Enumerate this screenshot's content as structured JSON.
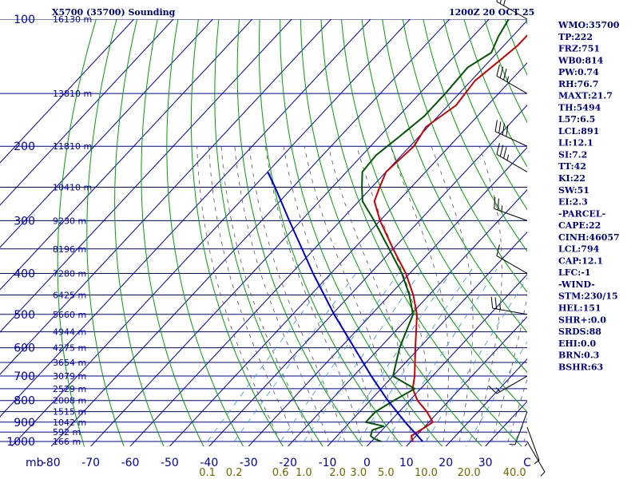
{
  "title_left": "X5700 (35700) Sounding",
  "title_right": "1200Z 20 OCT 25",
  "colors": {
    "isobar": "#0000aa",
    "isotherm": "#0000aa",
    "dry_adiabat": "#00a000",
    "moist_adiabat": "#555555",
    "mixing_ratio": "#3399cc",
    "temperature": "#cc0000",
    "dewpoint": "#005500",
    "parcel": "#0000cc",
    "text": "#000080"
  },
  "chart_data": {
    "type": "line",
    "diagram": "skew-t log-p",
    "x_unit_label": "C",
    "y_unit_label": "mb",
    "pressure_levels": [
      100,
      200,
      300,
      400,
      500,
      600,
      700,
      800,
      900,
      1000
    ],
    "temperature_ticks": [
      -80,
      -70,
      -60,
      -50,
      -40,
      -30,
      -20,
      -10,
      0,
      10,
      20,
      30
    ],
    "mixing_ratio_ticks": [
      "0.1",
      "0.2",
      "0.6",
      "1.0",
      "2.0",
      "3.0",
      "5.0",
      "10.0",
      "20.0",
      "40.0"
    ],
    "height_labels": [
      {
        "p": 100,
        "label": "16130 m"
      },
      {
        "p": 150,
        "label": "13810 m"
      },
      {
        "p": 200,
        "label": "11810 m"
      },
      {
        "p": 250,
        "label": "10410 m"
      },
      {
        "p": 300,
        "label": "9230 m"
      },
      {
        "p": 350,
        "label": "8196 m"
      },
      {
        "p": 400,
        "label": "7280 m"
      },
      {
        "p": 450,
        "label": "6425 m"
      },
      {
        "p": 500,
        "label": "5660 m"
      },
      {
        "p": 550,
        "label": "4944 m"
      },
      {
        "p": 600,
        "label": "4275 m"
      },
      {
        "p": 650,
        "label": "3654 m"
      },
      {
        "p": 700,
        "label": "3079 m"
      },
      {
        "p": 750,
        "label": "2529 m"
      },
      {
        "p": 800,
        "label": "2008 m"
      },
      {
        "p": 850,
        "label": "1515 m"
      },
      {
        "p": 900,
        "label": "1042 m"
      },
      {
        "p": 950,
        "label": "592 m"
      },
      {
        "p": 1000,
        "label": "166 m"
      }
    ],
    "series": [
      {
        "key": "temperature",
        "p": [
          1000,
          970,
          925,
          900,
          850,
          800,
          750,
          700,
          600,
          500,
          450,
          400,
          350,
          300,
          270,
          250,
          230,
          200,
          180,
          160,
          140,
          125,
          115,
          100
        ],
        "t": [
          10.5,
          8.8,
          10.2,
          11,
          7,
          2,
          -2,
          -4.5,
          -11,
          -18.5,
          -24,
          -31,
          -40,
          -50,
          -56,
          -58,
          -60,
          -59,
          -60.5,
          -58,
          -59,
          -57.5,
          -56.5,
          -56.5
        ]
      },
      {
        "key": "dewpoint",
        "p": [
          1000,
          985,
          970,
          940,
          920,
          900,
          850,
          800,
          750,
          700,
          600,
          500,
          450,
          400,
          350,
          300,
          270,
          250,
          230,
          210,
          190,
          170,
          150,
          130,
          120,
          110,
          100
        ],
        "t": [
          2.5,
          0,
          -1.5,
          -2.5,
          -0.5,
          -6,
          -6,
          -4,
          -1.5,
          -10,
          -15,
          -19.5,
          -25,
          -32,
          -41,
          -51.5,
          -59,
          -62.5,
          -66,
          -66.5,
          -65,
          -63.5,
          -63.5,
          -64,
          -61.5,
          -63.5,
          -65
        ]
      },
      {
        "key": "parcel",
        "p": [
          1000,
          900,
          800,
          700,
          600,
          500,
          400,
          300,
          250,
          230
        ],
        "t": [
          13,
          4,
          -5.5,
          -15.5,
          -26.5,
          -39.5,
          -54.5,
          -73,
          -84.5,
          -90
        ]
      }
    ],
    "wind_barbs": [
      {
        "p": 100,
        "dir": 300,
        "kt": 25
      },
      {
        "p": 150,
        "dir": 300,
        "kt": 35
      },
      {
        "p": 200,
        "dir": 295,
        "kt": 40
      },
      {
        "p": 230,
        "dir": 300,
        "kt": 35
      },
      {
        "p": 300,
        "dir": 290,
        "kt": 25
      },
      {
        "p": 400,
        "dir": 300,
        "kt": 10
      },
      {
        "p": 500,
        "dir": 280,
        "kt": 25
      },
      {
        "p": 700,
        "dir": 240,
        "kt": 15
      },
      {
        "p": 850,
        "dir": 200,
        "kt": 5
      },
      {
        "p": 925,
        "dir": 160,
        "kt": 5
      },
      {
        "p": 1000,
        "dir": 150,
        "kt": 5
      }
    ]
  },
  "stats": [
    "WMO:35700",
    "TP:222",
    "FRZ:751",
    "WB0:814",
    "PW:0.74",
    "RH:76.7",
    "MAXT:21.7",
    "TH:5494",
    "L57:6.5",
    "LCL:891",
    "LI:12.1",
    "SI:7.2",
    "TT:42",
    "KI:22",
    "SW:51",
    "EI:2.3",
    "-PARCEL-",
    "CAPE:22",
    "CINH:46057",
    "LCL:794",
    "CAP:12.1",
    "LFC:-1",
    "-WIND-",
    "STM:230/15",
    "HEL:151",
    "SHR+:0.0",
    "SRDS:88",
    "EHI:0.0",
    "BRN:0.3",
    "BSHR:63"
  ]
}
